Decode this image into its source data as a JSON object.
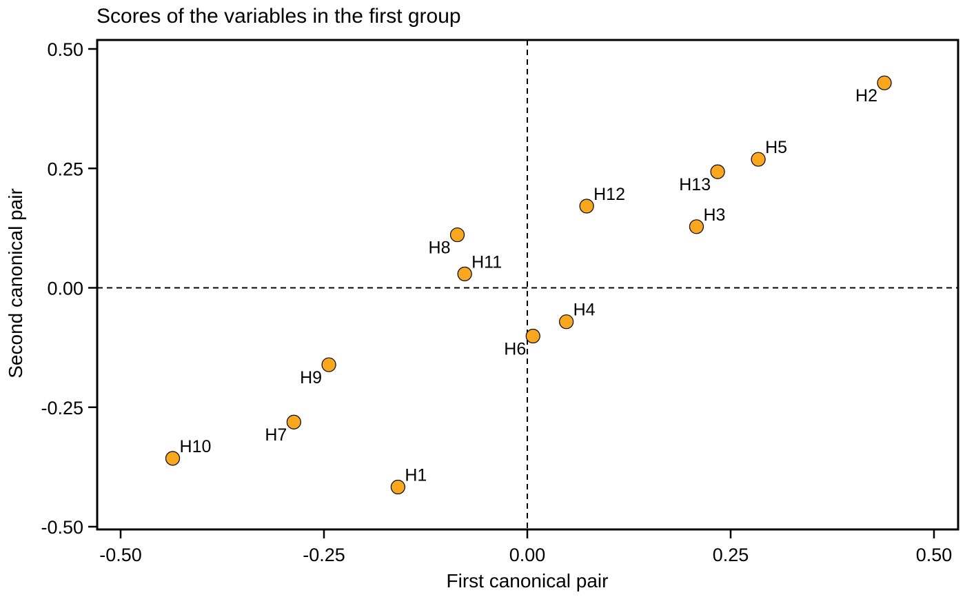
{
  "chart_data": {
    "type": "scatter",
    "title": "Scores of the variables in the first group",
    "xlabel": "First canonical pair",
    "ylabel": "Second canonical pair",
    "xlim": [
      -0.5,
      0.5
    ],
    "ylim": [
      -0.5,
      0.5
    ],
    "x_ticks": [
      -0.5,
      -0.25,
      0.0,
      0.25,
      0.5
    ],
    "y_ticks": [
      -0.5,
      -0.25,
      0.0,
      0.25,
      0.5
    ],
    "x_tick_labels": [
      "-0.50",
      "-0.25",
      "0.00",
      "0.25",
      "0.50"
    ],
    "y_tick_labels": [
      "-0.50",
      "-0.25",
      "0.00",
      "0.25",
      "0.50"
    ],
    "reference_lines": {
      "x": 0,
      "y": 0,
      "style": "dashed"
    },
    "marker_color": "#F9A71E",
    "marker_edge_color": "#000000",
    "grid": false,
    "points": [
      {
        "label": "H1",
        "x": -0.159,
        "y": -0.417,
        "label_side": "upper-right"
      },
      {
        "label": "H2",
        "x": 0.439,
        "y": 0.429,
        "label_side": "lower-left"
      },
      {
        "label": "H3",
        "x": 0.208,
        "y": 0.128,
        "label_side": "upper-right"
      },
      {
        "label": "H4",
        "x": 0.048,
        "y": -0.071,
        "label_side": "upper-right"
      },
      {
        "label": "H5",
        "x": 0.284,
        "y": 0.269,
        "label_side": "upper-right"
      },
      {
        "label": "H6",
        "x": 0.007,
        "y": -0.101,
        "label_side": "lower-left"
      },
      {
        "label": "H7",
        "x": -0.287,
        "y": -0.281,
        "label_side": "lower-left"
      },
      {
        "label": "H8",
        "x": -0.086,
        "y": 0.111,
        "label_side": "lower-left"
      },
      {
        "label": "H9",
        "x": -0.244,
        "y": -0.161,
        "label_side": "lower-left"
      },
      {
        "label": "H10",
        "x": -0.436,
        "y": -0.357,
        "label_side": "upper-right"
      },
      {
        "label": "H11",
        "x": -0.077,
        "y": 0.029,
        "label_side": "upper-right"
      },
      {
        "label": "H12",
        "x": 0.073,
        "y": 0.171,
        "label_side": "upper-right"
      },
      {
        "label": "H13",
        "x": 0.234,
        "y": 0.243,
        "label_side": "lower-left"
      }
    ]
  }
}
